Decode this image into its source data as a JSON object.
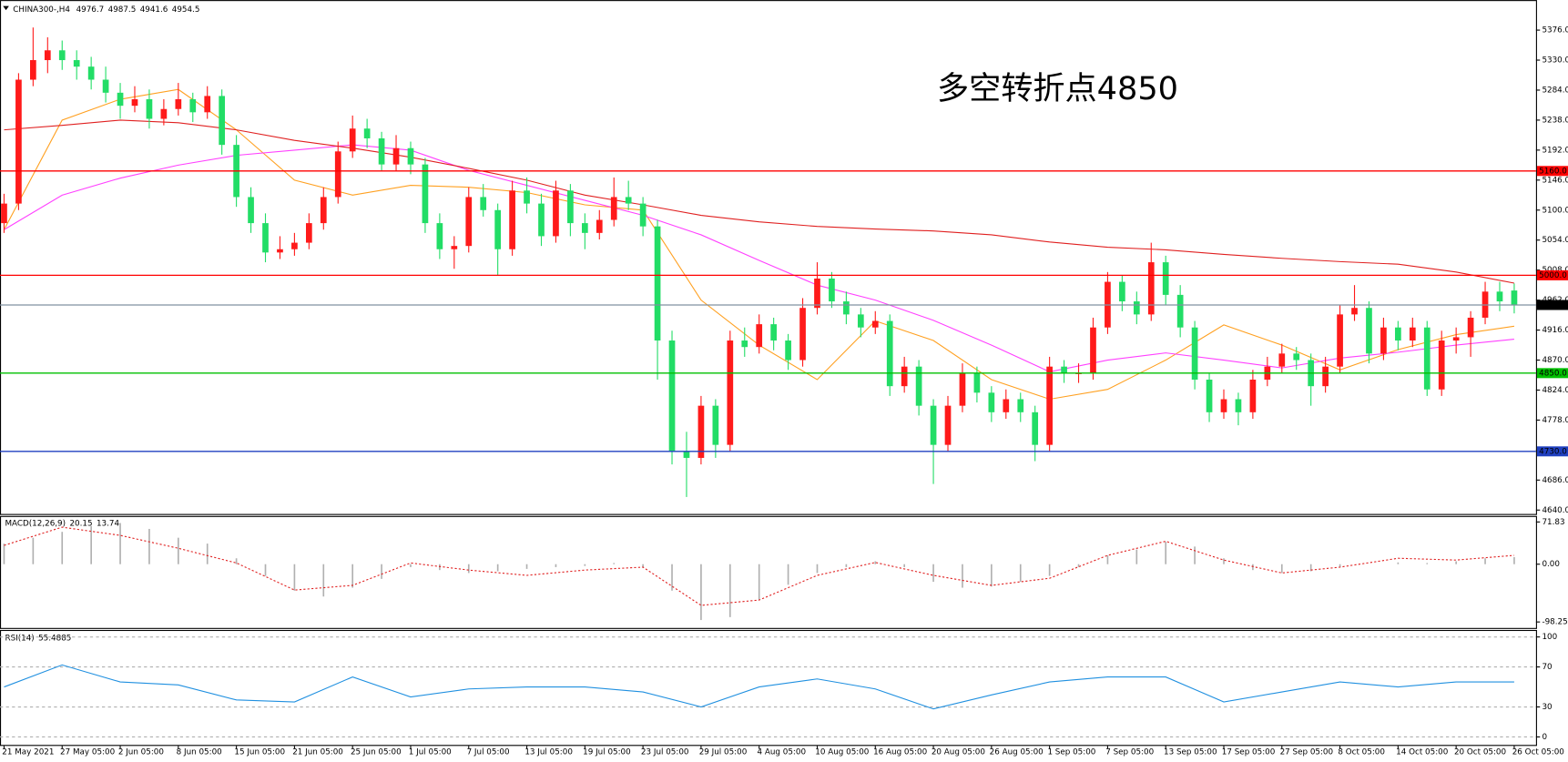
{
  "chart_data": [
    {
      "type": "candlestick",
      "title": "CHINA300-,H4",
      "annotation": "多空转折点4850",
      "annotation_color": "#ff0000",
      "up_color": "#ff1a1a",
      "down_color": "#22dd66",
      "xlim": [
        -0.28,
        105.5
      ],
      "ylim": [
        4634,
        5419
      ],
      "yticks": [
        {
          "value": 5376,
          "label": "5376.0"
        },
        {
          "value": 5330,
          "label": "5330.0"
        },
        {
          "value": 5284,
          "label": "5284.0"
        },
        {
          "value": 5238,
          "label": "5238.0"
        },
        {
          "value": 5192,
          "label": "5192.0"
        },
        {
          "value": 5146,
          "label": "5146.0"
        },
        {
          "value": 5100,
          "label": "5100.0"
        },
        {
          "value": 5054,
          "label": "5054.0"
        },
        {
          "value": 5008,
          "label": "5008.0"
        },
        {
          "value": 4962,
          "label": "4962.0"
        },
        {
          "value": 4916,
          "label": "4916.0"
        },
        {
          "value": 4870,
          "label": "4870.0"
        },
        {
          "value": 4824,
          "label": "4824.0"
        },
        {
          "value": 4778,
          "label": "4778.0"
        },
        {
          "value": 4732,
          "label": "4732.0"
        },
        {
          "value": 4686,
          "label": "4686.0"
        },
        {
          "value": 4640,
          "label": "4640.0"
        }
      ],
      "candles": [
        [
          5080,
          5125,
          5065,
          5110
        ],
        [
          5110,
          5310,
          5100,
          5300
        ],
        [
          5300,
          5380,
          5290,
          5330
        ],
        [
          5330,
          5365,
          5310,
          5345
        ],
        [
          5345,
          5360,
          5315,
          5330
        ],
        [
          5330,
          5345,
          5300,
          5320
        ],
        [
          5320,
          5335,
          5285,
          5300
        ],
        [
          5300,
          5320,
          5265,
          5280
        ],
        [
          5280,
          5295,
          5240,
          5260
        ],
        [
          5260,
          5290,
          5250,
          5270
        ],
        [
          5270,
          5285,
          5225,
          5240
        ],
        [
          5240,
          5270,
          5230,
          5255
        ],
        [
          5255,
          5295,
          5245,
          5270
        ],
        [
          5270,
          5280,
          5235,
          5250
        ],
        [
          5250,
          5290,
          5240,
          5275
        ],
        [
          5275,
          5285,
          5185,
          5200
        ],
        [
          5200,
          5215,
          5105,
          5120
        ],
        [
          5120,
          5135,
          5065,
          5080
        ],
        [
          5080,
          5095,
          5020,
          5035
        ],
        [
          5035,
          5060,
          5025,
          5040
        ],
        [
          5040,
          5065,
          5030,
          5050
        ],
        [
          5050,
          5095,
          5040,
          5080
        ],
        [
          5080,
          5135,
          5070,
          5120
        ],
        [
          5120,
          5205,
          5110,
          5190
        ],
        [
          5190,
          5245,
          5180,
          5225
        ],
        [
          5225,
          5240,
          5195,
          5210
        ],
        [
          5210,
          5220,
          5160,
          5170
        ],
        [
          5170,
          5215,
          5160,
          5195
        ],
        [
          5195,
          5205,
          5155,
          5170
        ],
        [
          5170,
          5180,
          5065,
          5080
        ],
        [
          5080,
          5095,
          5025,
          5040
        ],
        [
          5040,
          5060,
          5010,
          5045
        ],
        [
          5045,
          5135,
          5035,
          5120
        ],
        [
          5120,
          5140,
          5090,
          5100
        ],
        [
          5100,
          5110,
          5000,
          5040
        ],
        [
          5040,
          5145,
          5030,
          5130
        ],
        [
          5130,
          5150,
          5095,
          5110
        ],
        [
          5110,
          5125,
          5045,
          5060
        ],
        [
          5060,
          5145,
          5050,
          5130
        ],
        [
          5130,
          5140,
          5060,
          5080
        ],
        [
          5080,
          5095,
          5040,
          5065
        ],
        [
          5065,
          5100,
          5055,
          5085
        ],
        [
          5085,
          5150,
          5075,
          5120
        ],
        [
          5120,
          5145,
          5100,
          5110
        ],
        [
          5110,
          5120,
          5060,
          5075
        ],
        [
          5075,
          5085,
          4840,
          4900
        ],
        [
          4900,
          4915,
          4710,
          4730
        ],
        [
          4730,
          4760,
          4660,
          4720
        ],
        [
          4720,
          4815,
          4710,
          4800
        ],
        [
          4800,
          4810,
          4720,
          4740
        ],
        [
          4740,
          4915,
          4730,
          4900
        ],
        [
          4900,
          4920,
          4875,
          4890
        ],
        [
          4890,
          4940,
          4880,
          4925
        ],
        [
          4925,
          4935,
          4885,
          4900
        ],
        [
          4900,
          4910,
          4855,
          4870
        ],
        [
          4870,
          4965,
          4860,
          4950
        ],
        [
          4950,
          5020,
          4940,
          4995
        ],
        [
          4995,
          5005,
          4950,
          4960
        ],
        [
          4960,
          4975,
          4925,
          4940
        ],
        [
          4940,
          4950,
          4905,
          4920
        ],
        [
          4920,
          4945,
          4910,
          4930
        ],
        [
          4930,
          4940,
          4815,
          4830
        ],
        [
          4830,
          4875,
          4820,
          4860
        ],
        [
          4860,
          4870,
          4785,
          4800
        ],
        [
          4800,
          4810,
          4680,
          4740
        ],
        [
          4740,
          4815,
          4730,
          4800
        ],
        [
          4800,
          4865,
          4790,
          4850
        ],
        [
          4850,
          4860,
          4805,
          4820
        ],
        [
          4820,
          4830,
          4775,
          4790
        ],
        [
          4790,
          4825,
          4780,
          4810
        ],
        [
          4810,
          4820,
          4775,
          4790
        ],
        [
          4790,
          4800,
          4715,
          4740
        ],
        [
          4740,
          4875,
          4730,
          4860
        ],
        [
          4860,
          4870,
          4835,
          4850
        ],
        [
          4850,
          4865,
          4835,
          4850
        ],
        [
          4850,
          4935,
          4840,
          4920
        ],
        [
          4920,
          5005,
          4910,
          4990
        ],
        [
          4990,
          5000,
          4945,
          4960
        ],
        [
          4960,
          4975,
          4925,
          4940
        ],
        [
          4940,
          5050,
          4930,
          5020
        ],
        [
          5020,
          5030,
          4955,
          4970
        ],
        [
          4970,
          4985,
          4905,
          4920
        ],
        [
          4920,
          4930,
          4825,
          4840
        ],
        [
          4840,
          4850,
          4775,
          4790
        ],
        [
          4790,
          4825,
          4780,
          4810
        ],
        [
          4810,
          4820,
          4770,
          4790
        ],
        [
          4790,
          4855,
          4780,
          4840
        ],
        [
          4840,
          4875,
          4830,
          4860
        ],
        [
          4860,
          4895,
          4850,
          4880
        ],
        [
          4880,
          4890,
          4855,
          4870
        ],
        [
          4870,
          4880,
          4800,
          4830
        ],
        [
          4830,
          4875,
          4820,
          4860
        ],
        [
          4860,
          4955,
          4850,
          4940
        ],
        [
          4940,
          4985,
          4930,
          4950
        ],
        [
          4950,
          4960,
          4865,
          4880
        ],
        [
          4880,
          4935,
          4870,
          4920
        ],
        [
          4920,
          4930,
          4885,
          4900
        ],
        [
          4900,
          4935,
          4890,
          4920
        ],
        [
          4920,
          4930,
          4815,
          4825
        ],
        [
          4825,
          4915,
          4815,
          4900
        ],
        [
          4900,
          4920,
          4880,
          4905
        ],
        [
          4905,
          4945,
          4875,
          4935
        ],
        [
          4935,
          4990,
          4925,
          4975
        ],
        [
          4975,
          4990,
          4945,
          4960
        ],
        [
          4976.7,
          4987.5,
          4941.6,
          4954.5
        ]
      ],
      "x": [
        0,
        4,
        8,
        12,
        16,
        20,
        24,
        28,
        32,
        36,
        40,
        44,
        48,
        52,
        56,
        60,
        64,
        68,
        72,
        76,
        80,
        84,
        88,
        92,
        96,
        100,
        104
      ],
      "series": [
        {
          "color": "#ffa020",
          "values": [
            5070,
            5238,
            5270,
            5285,
            5223,
            5146,
            5123,
            5138,
            5135,
            5127,
            5108,
            5100,
            4962,
            4893,
            4840,
            4930,
            4900,
            4840,
            4810,
            4825,
            4870,
            4924,
            4893,
            4855,
            4886,
            4909,
            4922
          ]
        },
        {
          "color": "#ff40ff",
          "values": [
            5070,
            5123,
            5149,
            5169,
            5184,
            5192,
            5200,
            5192,
            5161,
            5138,
            5115,
            5092,
            5062,
            5023,
            4985,
            4962,
            4931,
            4893,
            4852,
            4870,
            4881,
            4870,
            4858,
            4873,
            4882,
            4893,
            4902
          ]
        },
        {
          "color": "#e02020",
          "values": [
            5223,
            5230,
            5238,
            5234,
            5223,
            5207,
            5195,
            5181,
            5164,
            5146,
            5123,
            5108,
            5092,
            5082,
            5075,
            5071,
            5068,
            5062,
            5051,
            5043,
            5039,
            5032,
            5026,
            5021,
            5017,
            5005,
            4988
          ]
        }
      ],
      "levels": [
        {
          "value": 5160,
          "label": "5160.0",
          "color": "#ff0000",
          "tag": "#ff0000"
        },
        {
          "value": 5000,
          "label": "5000.0",
          "color": "#ff0000",
          "tag": "#ff0000"
        },
        {
          "value": 4954.5,
          "color": "#8090a0",
          "tag": "#000000"
        },
        {
          "value": 4850,
          "label": "4850.0",
          "color": "#00c000",
          "tag": "#00c000"
        },
        {
          "value": 4730,
          "label": "4730.0",
          "color": "#2040c0",
          "tag": "#2040c0"
        }
      ]
    },
    {
      "type": "macd",
      "title": "MACD(12,26,9)",
      "readout": [
        20.15,
        13.74
      ],
      "xlim": [
        -0.28,
        105.5
      ],
      "ylim": [
        -108.45,
        80.3
      ],
      "yticks": [
        71.83,
        {
          "value": 0,
          "label": "0.00"
        },
        -98.25
      ],
      "histogram": {
        "color": "#b0b0b0",
        "x": [
          0,
          2,
          4,
          6,
          8,
          10,
          12,
          14,
          16,
          18,
          20,
          22,
          24,
          26,
          28,
          30,
          32,
          34,
          36,
          38,
          40,
          42,
          44,
          46,
          48,
          50,
          52,
          54,
          56,
          58,
          60,
          62,
          64,
          66,
          68,
          70,
          72,
          74,
          76,
          78,
          80,
          82,
          84,
          86,
          88,
          90,
          92,
          94,
          96,
          98,
          100,
          102,
          104
        ],
        "values": [
          35,
          45,
          55,
          65,
          70,
          60,
          45,
          35,
          10,
          -20,
          -45,
          -55,
          -40,
          -25,
          -5,
          -10,
          -15,
          -12,
          -8,
          -5,
          -3,
          2,
          -5,
          -45,
          -95,
          -90,
          -60,
          -35,
          -15,
          -5,
          5,
          -5,
          -30,
          -40,
          -38,
          -30,
          -20,
          -5,
          15,
          25,
          38,
          30,
          10,
          -10,
          -15,
          -12,
          -5,
          0,
          3,
          2,
          5,
          10,
          12
        ]
      },
      "signal": {
        "color": "#e02020",
        "x": [
          0,
          4,
          8,
          12,
          16,
          20,
          24,
          28,
          32,
          36,
          40,
          44,
          48,
          52,
          56,
          60,
          64,
          68,
          72,
          76,
          80,
          84,
          88,
          92,
          96,
          100,
          104
        ],
        "values": [
          32,
          63,
          49,
          27,
          2,
          -44,
          -36,
          2,
          -10,
          -19,
          -10,
          -5,
          -70,
          -61,
          -19,
          3,
          -19,
          -36,
          -24,
          15,
          39,
          7,
          -15,
          -5,
          10,
          7,
          15
        ]
      }
    },
    {
      "type": "rsi",
      "title": "RSI(14)",
      "readout": 55.4885,
      "xlim": [
        -0.28,
        105.5
      ],
      "ylim": [
        -8,
        106
      ],
      "yticks": [
        100,
        70,
        30,
        0
      ],
      "color": "#2090e0",
      "x": [
        0,
        4,
        8,
        12,
        16,
        20,
        24,
        28,
        32,
        36,
        40,
        44,
        48,
        52,
        56,
        60,
        64,
        68,
        72,
        76,
        80,
        84,
        88,
        92,
        96,
        100,
        104
      ],
      "values": [
        50,
        72,
        55,
        52,
        37,
        35,
        60,
        40,
        48,
        50,
        50,
        45,
        30,
        50,
        58,
        48,
        28,
        42,
        55,
        60,
        60,
        35,
        45,
        55,
        50,
        55,
        55
      ],
      "xticks": [
        {
          "value": 0,
          "label": "21 May 2021"
        },
        {
          "value": 4,
          "label": "27 May 05:00"
        },
        {
          "value": 8,
          "label": "2 Jun 05:00"
        },
        {
          "value": 12,
          "label": "8 Jun 05:00"
        },
        {
          "value": 16,
          "label": "15 Jun 05:00"
        },
        {
          "value": 20,
          "label": "21 Jun 05:00"
        },
        {
          "value": 24,
          "label": "25 Jun 05:00"
        },
        {
          "value": 28,
          "label": "1 Jul 05:00"
        },
        {
          "value": 32,
          "label": "7 Jul 05:00"
        },
        {
          "value": 36,
          "label": "13 Jul 05:00"
        },
        {
          "value": 40,
          "label": "19 Jul 05:00"
        },
        {
          "value": 44,
          "label": "23 Jul 05:00"
        },
        {
          "value": 48,
          "label": "29 Jul 05:00"
        },
        {
          "value": 52,
          "label": "4 Aug 05:00"
        },
        {
          "value": 56,
          "label": "10 Aug 05:00"
        },
        {
          "value": 60,
          "label": "16 Aug 05:00"
        },
        {
          "value": 64,
          "label": "20 Aug 05:00"
        },
        {
          "value": 68,
          "label": "26 Aug 05:00"
        },
        {
          "value": 72,
          "label": "1 Sep 05:00"
        },
        {
          "value": 76,
          "label": "7 Sep 05:00"
        },
        {
          "value": 80,
          "label": "13 Sep 05:00"
        },
        {
          "value": 84,
          "label": "17 Sep 05:00"
        },
        {
          "value": 88,
          "label": "27 Sep 05:00"
        },
        {
          "value": 92,
          "label": "8 Oct 05:00"
        },
        {
          "value": 96,
          "label": "14 Oct 05:00"
        },
        {
          "value": 100,
          "label": "20 Oct 05:00"
        },
        {
          "value": 104,
          "label": "26 Oct 05:00"
        }
      ]
    }
  ]
}
